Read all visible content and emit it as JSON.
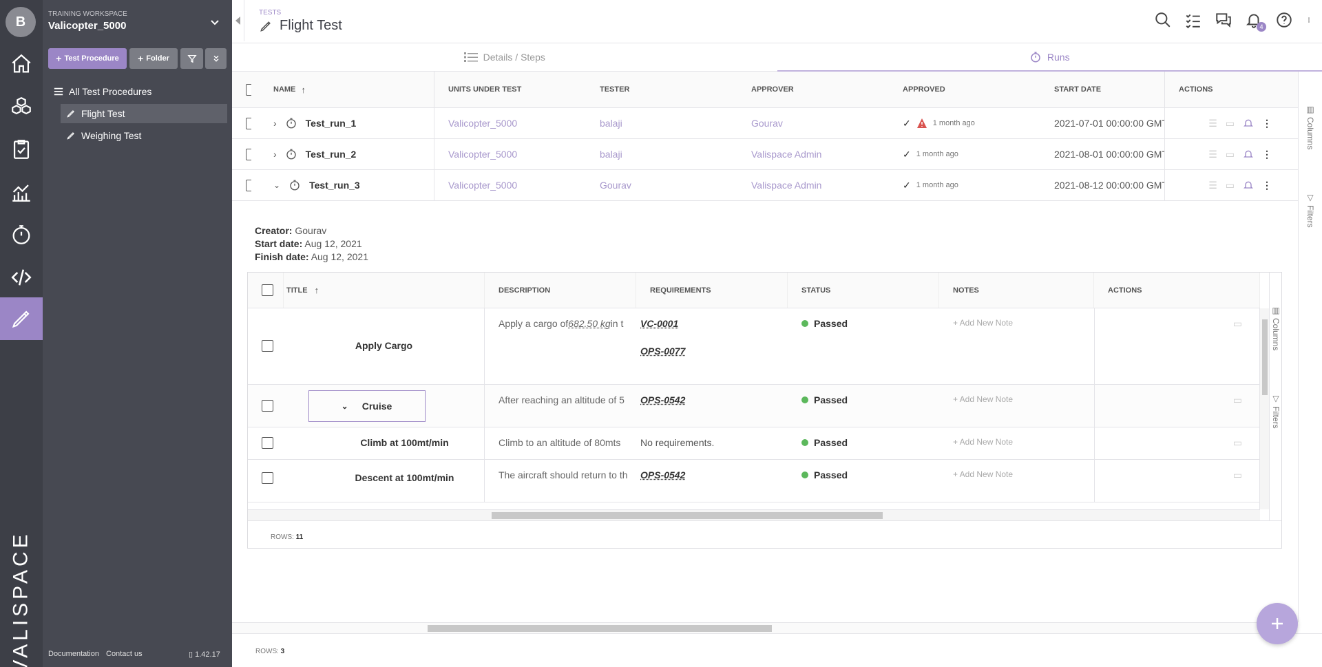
{
  "workspace": {
    "label": "TRAINING WORKSPACE",
    "name": "Valicopter_5000",
    "avatar": "B"
  },
  "rail": {
    "brand": "VALISPACE",
    "icons": [
      "home-icon",
      "cubes-icon",
      "clipboard-check-icon",
      "chart-icon",
      "stopwatch-icon",
      "code-icon",
      "pencil-ruler-icon"
    ]
  },
  "sidebar": {
    "add_test_procedure": "Test Procedure",
    "add_folder": "Folder",
    "tree": [
      {
        "label": "All Test Procedures"
      },
      {
        "label": "Flight Test"
      },
      {
        "label": "Weighing Test"
      }
    ],
    "footer": {
      "documentation": "Documentation",
      "contact": "Contact us",
      "version": "1.42.17"
    }
  },
  "header": {
    "section": "TESTS",
    "title": "Flight Test",
    "notification_count": "4"
  },
  "tabs": [
    {
      "label": "Details / Steps"
    },
    {
      "label": "Runs"
    }
  ],
  "runs_table": {
    "columns": {
      "name": "NAME",
      "uut": "UNITS UNDER TEST",
      "tester": "TESTER",
      "approver": "APPROVER",
      "approved": "APPROVED",
      "start_date": "START DATE",
      "actions": "ACTIONS"
    },
    "rows": [
      {
        "name": "Test_run_1",
        "uut": "Valicopter_5000",
        "tester": "balaji",
        "approver": "Gourav",
        "approved_ago": "1 month ago",
        "start_date": "2021-07-01 00:00:00 GMT"
      },
      {
        "name": "Test_run_2",
        "uut": "Valicopter_5000",
        "tester": "balaji",
        "approver": "Valispace Admin",
        "approved_ago": "1 month ago",
        "start_date": "2021-08-01 00:00:00 GMT"
      },
      {
        "name": "Test_run_3",
        "uut": "Valicopter_5000",
        "tester": "Gourav",
        "approver": "Valispace Admin",
        "approved_ago": "1 month ago",
        "start_date": "2021-08-12 00:00:00 GMT"
      }
    ],
    "rows_label": "ROWS:",
    "rows_count": "3"
  },
  "run_details": {
    "creator_label": "Creator:",
    "creator": "Gourav",
    "start_label": "Start date:",
    "start": "Aug 12, 2021",
    "finish_label": "Finish date:",
    "finish": "Aug 12, 2021"
  },
  "steps_table": {
    "columns": {
      "title": "TITLE",
      "description": "DESCRIPTION",
      "requirements": "REQUIREMENTS",
      "status": "STATUS",
      "notes": "NOTES",
      "actions": "ACTIONS"
    },
    "rows": [
      {
        "title": "Apply Cargo",
        "description_start": "Apply a cargo of ",
        "description_value": "682.50 kg",
        "description_end": " in t",
        "req1": "VC-0001",
        "req2": "OPS-0077",
        "status": "Passed",
        "note": "+ Add New Note"
      },
      {
        "title": "Cruise",
        "description": "After reaching an altitude of 5",
        "req1": "OPS-0542",
        "status": "Passed",
        "note": "+ Add New Note"
      },
      {
        "title": "Climb at 100mt/min",
        "description": "Climb to an altitude of 80mts",
        "req1": "No requirements.",
        "status": "Passed",
        "note": "+ Add New Note"
      },
      {
        "title": "Descent at 100mt/min",
        "description": "The aircraft should return to th",
        "req1": "OPS-0542",
        "status": "Passed",
        "note": "+ Add New Note"
      }
    ],
    "rows_label": "ROWS:",
    "rows_count": "11",
    "side_columns": "Columns",
    "side_filters": "Filters"
  },
  "main_side": {
    "columns": "Columns",
    "filters": "Filters"
  },
  "colors": {
    "accent": "#9b86c6",
    "rail": "#3d3f47",
    "sidebar": "#474952",
    "passed": "#5cb85c",
    "warning": "#d9534f"
  }
}
